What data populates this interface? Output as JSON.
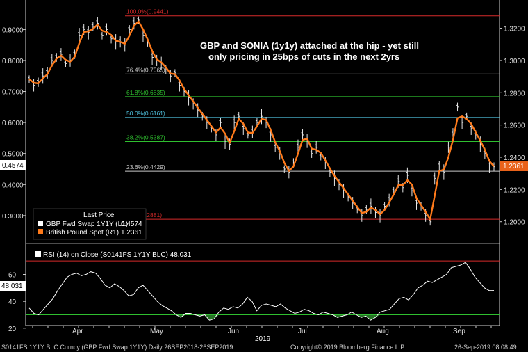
{
  "chart_data": {
    "type": "line",
    "annotation": "GBP and SONIA (1y1y) attached at the hip - yet still only pricing in 25bps of cuts in the next 2yrs",
    "legend": {
      "header": "Last Price",
      "items": [
        {
          "label": "GBP Fwd Swap 1Y1Y  (L1)",
          "value": "0.4574",
          "color": "#ffffff"
        },
        {
          "label": "British Pound Spot  (R1)",
          "value": "1.2361",
          "color": "#ff7a1a"
        }
      ]
    },
    "left_axis": {
      "ticks": [
        "0.9000",
        "0.8000",
        "0.7000",
        "0.6000",
        "0.5000",
        "0.4000",
        "0.3000"
      ],
      "range": [
        0.21,
        0.995
      ],
      "last_label": "0.4574"
    },
    "right_axis": {
      "ticks": [
        "1.3200",
        "1.3000",
        "1.2800",
        "1.2600",
        "1.2400",
        "1.2200",
        "1.2000"
      ],
      "range": [
        1.1865,
        1.3375
      ],
      "last_label": "1.2361"
    },
    "fib_levels": [
      {
        "label": "100.0%(0.9441)",
        "value": 0.9441,
        "color": "#d62a2a"
      },
      {
        "label": "76.4%(0.7565)",
        "value": 0.7565,
        "color": "#c8c8c8"
      },
      {
        "label": "61.8%(0.6835)",
        "value": 0.6835,
        "color": "#2fbf2f"
      },
      {
        "label": "50.0%(0.6161)",
        "value": 0.6161,
        "color": "#4fc3e0"
      },
      {
        "label": "38.2%(0.5387)",
        "value": 0.5387,
        "color": "#2fbf2f"
      },
      {
        "label": "23.6%(0.4429)",
        "value": 0.4429,
        "color": "#c8c8c8"
      },
      {
        "label": "0.0%(0.2881)",
        "value": 0.2881,
        "color": "#d62a2a"
      }
    ],
    "months": [
      "Apr",
      "May",
      "Jun",
      "Jul",
      "Aug",
      "Sep"
    ],
    "year_label": "2019",
    "gbp_fwd_swap": [
      0.74,
      0.72,
      0.73,
      0.75,
      0.76,
      0.8,
      0.81,
      0.82,
      0.79,
      0.8,
      0.82,
      0.88,
      0.9,
      0.89,
      0.91,
      0.92,
      0.88,
      0.9,
      0.87,
      0.86,
      0.86,
      0.85,
      0.9,
      0.92,
      0.93,
      0.88,
      0.86,
      0.81,
      0.8,
      0.79,
      0.77,
      0.75,
      0.76,
      0.72,
      0.7,
      0.68,
      0.66,
      0.64,
      0.62,
      0.6,
      0.58,
      0.56,
      0.6,
      0.54,
      0.53,
      0.6,
      0.62,
      0.58,
      0.56,
      0.57,
      0.6,
      0.62,
      0.6,
      0.56,
      0.52,
      0.5,
      0.45,
      0.44,
      0.47,
      0.52,
      0.56,
      0.54,
      0.5,
      0.52,
      0.49,
      0.47,
      0.44,
      0.42,
      0.4,
      0.38,
      0.36,
      0.34,
      0.32,
      0.3,
      0.32,
      0.33,
      0.31,
      0.3,
      0.33,
      0.35,
      0.38,
      0.41,
      0.39,
      0.43,
      0.38,
      0.34,
      0.33,
      0.3,
      0.28,
      0.42,
      0.46,
      0.44,
      0.52,
      0.56,
      0.65,
      0.6,
      0.62,
      0.58,
      0.56,
      0.53,
      0.5,
      0.46,
      0.4574
    ],
    "rsi": {
      "label": "RSI (14)  on Close (S0141FS 1Y1Y BLC) 48.031",
      "last_label": "48.031",
      "ticks": [
        "60",
        "40",
        "20"
      ],
      "range": [
        23,
        82
      ],
      "overbought": 70,
      "oversold": 30,
      "values": [
        35,
        31,
        30,
        34,
        38,
        42,
        48,
        53,
        58,
        60,
        61,
        59,
        60,
        62,
        61,
        57,
        52,
        50,
        53,
        51,
        48,
        44,
        45,
        50,
        52,
        48,
        44,
        40,
        37,
        35,
        33,
        30,
        28,
        31,
        31,
        30,
        29,
        30,
        26,
        27,
        32,
        35,
        34,
        36,
        35,
        38,
        43,
        40,
        33,
        37,
        38,
        37,
        36,
        38,
        35,
        33,
        31,
        32,
        34,
        33,
        31,
        30,
        32,
        31,
        30,
        28,
        29,
        30,
        32,
        30,
        28,
        29,
        26,
        28,
        32,
        33,
        34,
        38,
        42,
        43,
        41,
        45,
        50,
        52,
        55,
        54,
        56,
        58,
        60,
        65,
        66,
        67,
        69,
        64,
        58,
        54,
        50,
        48,
        48.031
      ]
    },
    "footer": {
      "left": "S0141FS 1Y1Y BLC Curncy (GBP Fwd Swap 1Y1Y)  Daily 26SEP2018-26SEP2019",
      "center": "Copyright© 2019 Bloomberg Finance L.P.",
      "right": "26-Sep-2019 08:08:49"
    },
    "colors": {
      "background": "#000000",
      "swap": "#ffffff",
      "spot": "#ff7a1a",
      "axis": "#cfcfcf"
    }
  }
}
